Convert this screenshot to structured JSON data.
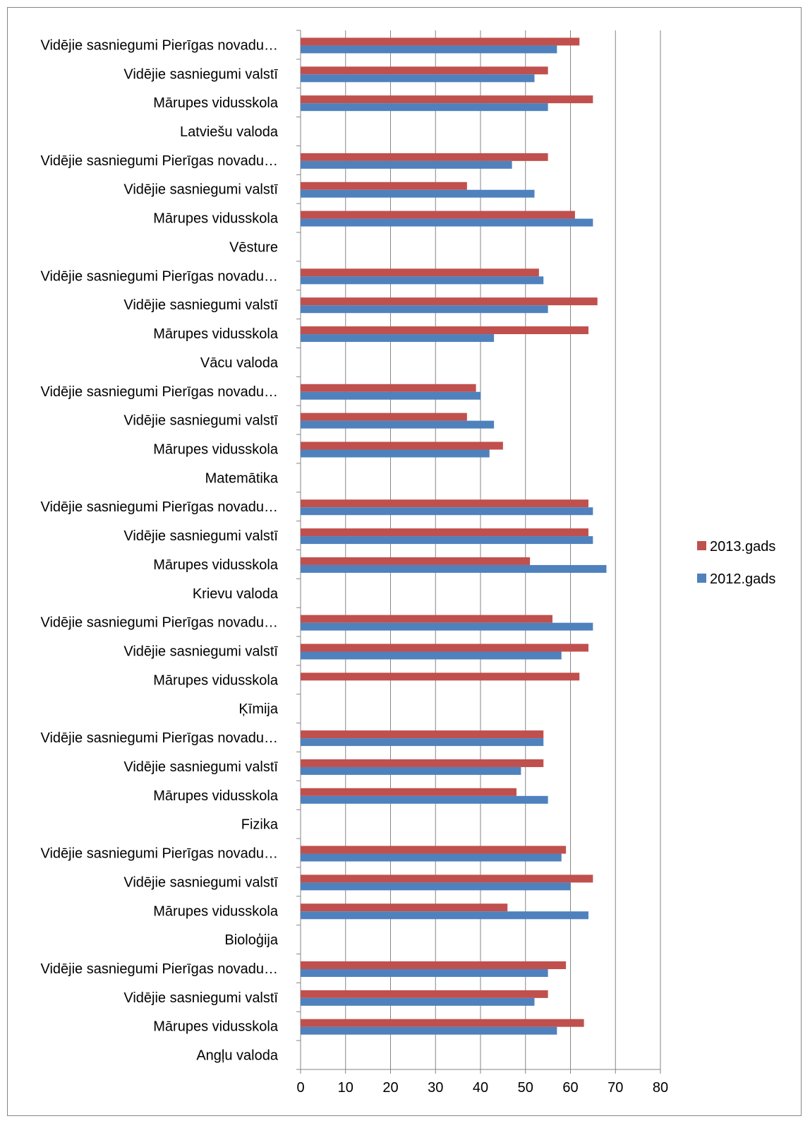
{
  "chart_data": {
    "type": "bar",
    "orientation": "horizontal",
    "categories": [
      "Angļu valoda",
      "Mārupes vidusskola",
      "Vidējie sasniegumi valstī",
      "Vidējie sasniegumi Pierīgas novadu…",
      "Bioloģija",
      "Mārupes vidusskola",
      "Vidējie sasniegumi valstī",
      "Vidējie sasniegumi Pierīgas novadu…",
      "Fizika",
      "Mārupes vidusskola",
      "Vidējie sasniegumi valstī",
      "Vidējie sasniegumi Pierīgas novadu…",
      "Ķīmija",
      "Mārupes vidusskola",
      "Vidējie sasniegumi valstī",
      "Vidējie sasniegumi Pierīgas novadu…",
      "Krievu valoda",
      "Mārupes vidusskola",
      "Vidējie sasniegumi valstī",
      "Vidējie sasniegumi Pierīgas novadu…",
      "Matemātika",
      "Mārupes vidusskola",
      "Vidējie sasniegumi valstī",
      "Vidējie sasniegumi Pierīgas novadu…",
      "Vācu valoda",
      "Mārupes vidusskola",
      "Vidējie sasniegumi valstī",
      "Vidējie sasniegumi Pierīgas novadu…",
      "Vēsture",
      "Mārupes vidusskola",
      "Vidējie sasniegumi valstī",
      "Vidējie sasniegumi Pierīgas novadu…",
      "Latviešu valoda",
      "Mārupes vidusskola",
      "Vidējie sasniegumi valstī",
      "Vidējie sasniegumi Pierīgas novadu…"
    ],
    "series": [
      {
        "name": "2012.gads",
        "color": "#4f81bd",
        "values": [
          null,
          57,
          52,
          55,
          null,
          64,
          60,
          58,
          null,
          55,
          49,
          54,
          null,
          null,
          58,
          65,
          null,
          68,
          65,
          65,
          null,
          42,
          43,
          40,
          null,
          43,
          55,
          54,
          null,
          65,
          52,
          47,
          null,
          55,
          52,
          57
        ]
      },
      {
        "name": "2013.gads",
        "color": "#c0504d",
        "values": [
          null,
          63,
          55,
          59,
          null,
          46,
          65,
          59,
          null,
          48,
          54,
          54,
          null,
          62,
          64,
          56,
          null,
          51,
          64,
          64,
          null,
          45,
          37,
          39,
          null,
          64,
          66,
          53,
          null,
          61,
          37,
          55,
          null,
          65,
          55,
          62
        ]
      }
    ],
    "xlim": [
      0,
      80
    ],
    "xticks": [
      "0",
      "10",
      "20",
      "30",
      "40",
      "50",
      "60",
      "70",
      "80"
    ],
    "grid": "vertical",
    "legend": {
      "position": "right",
      "entries": [
        {
          "label": "2013.gads",
          "color": "#c0504d"
        },
        {
          "label": "2012.gads",
          "color": "#4f81bd"
        }
      ]
    }
  }
}
